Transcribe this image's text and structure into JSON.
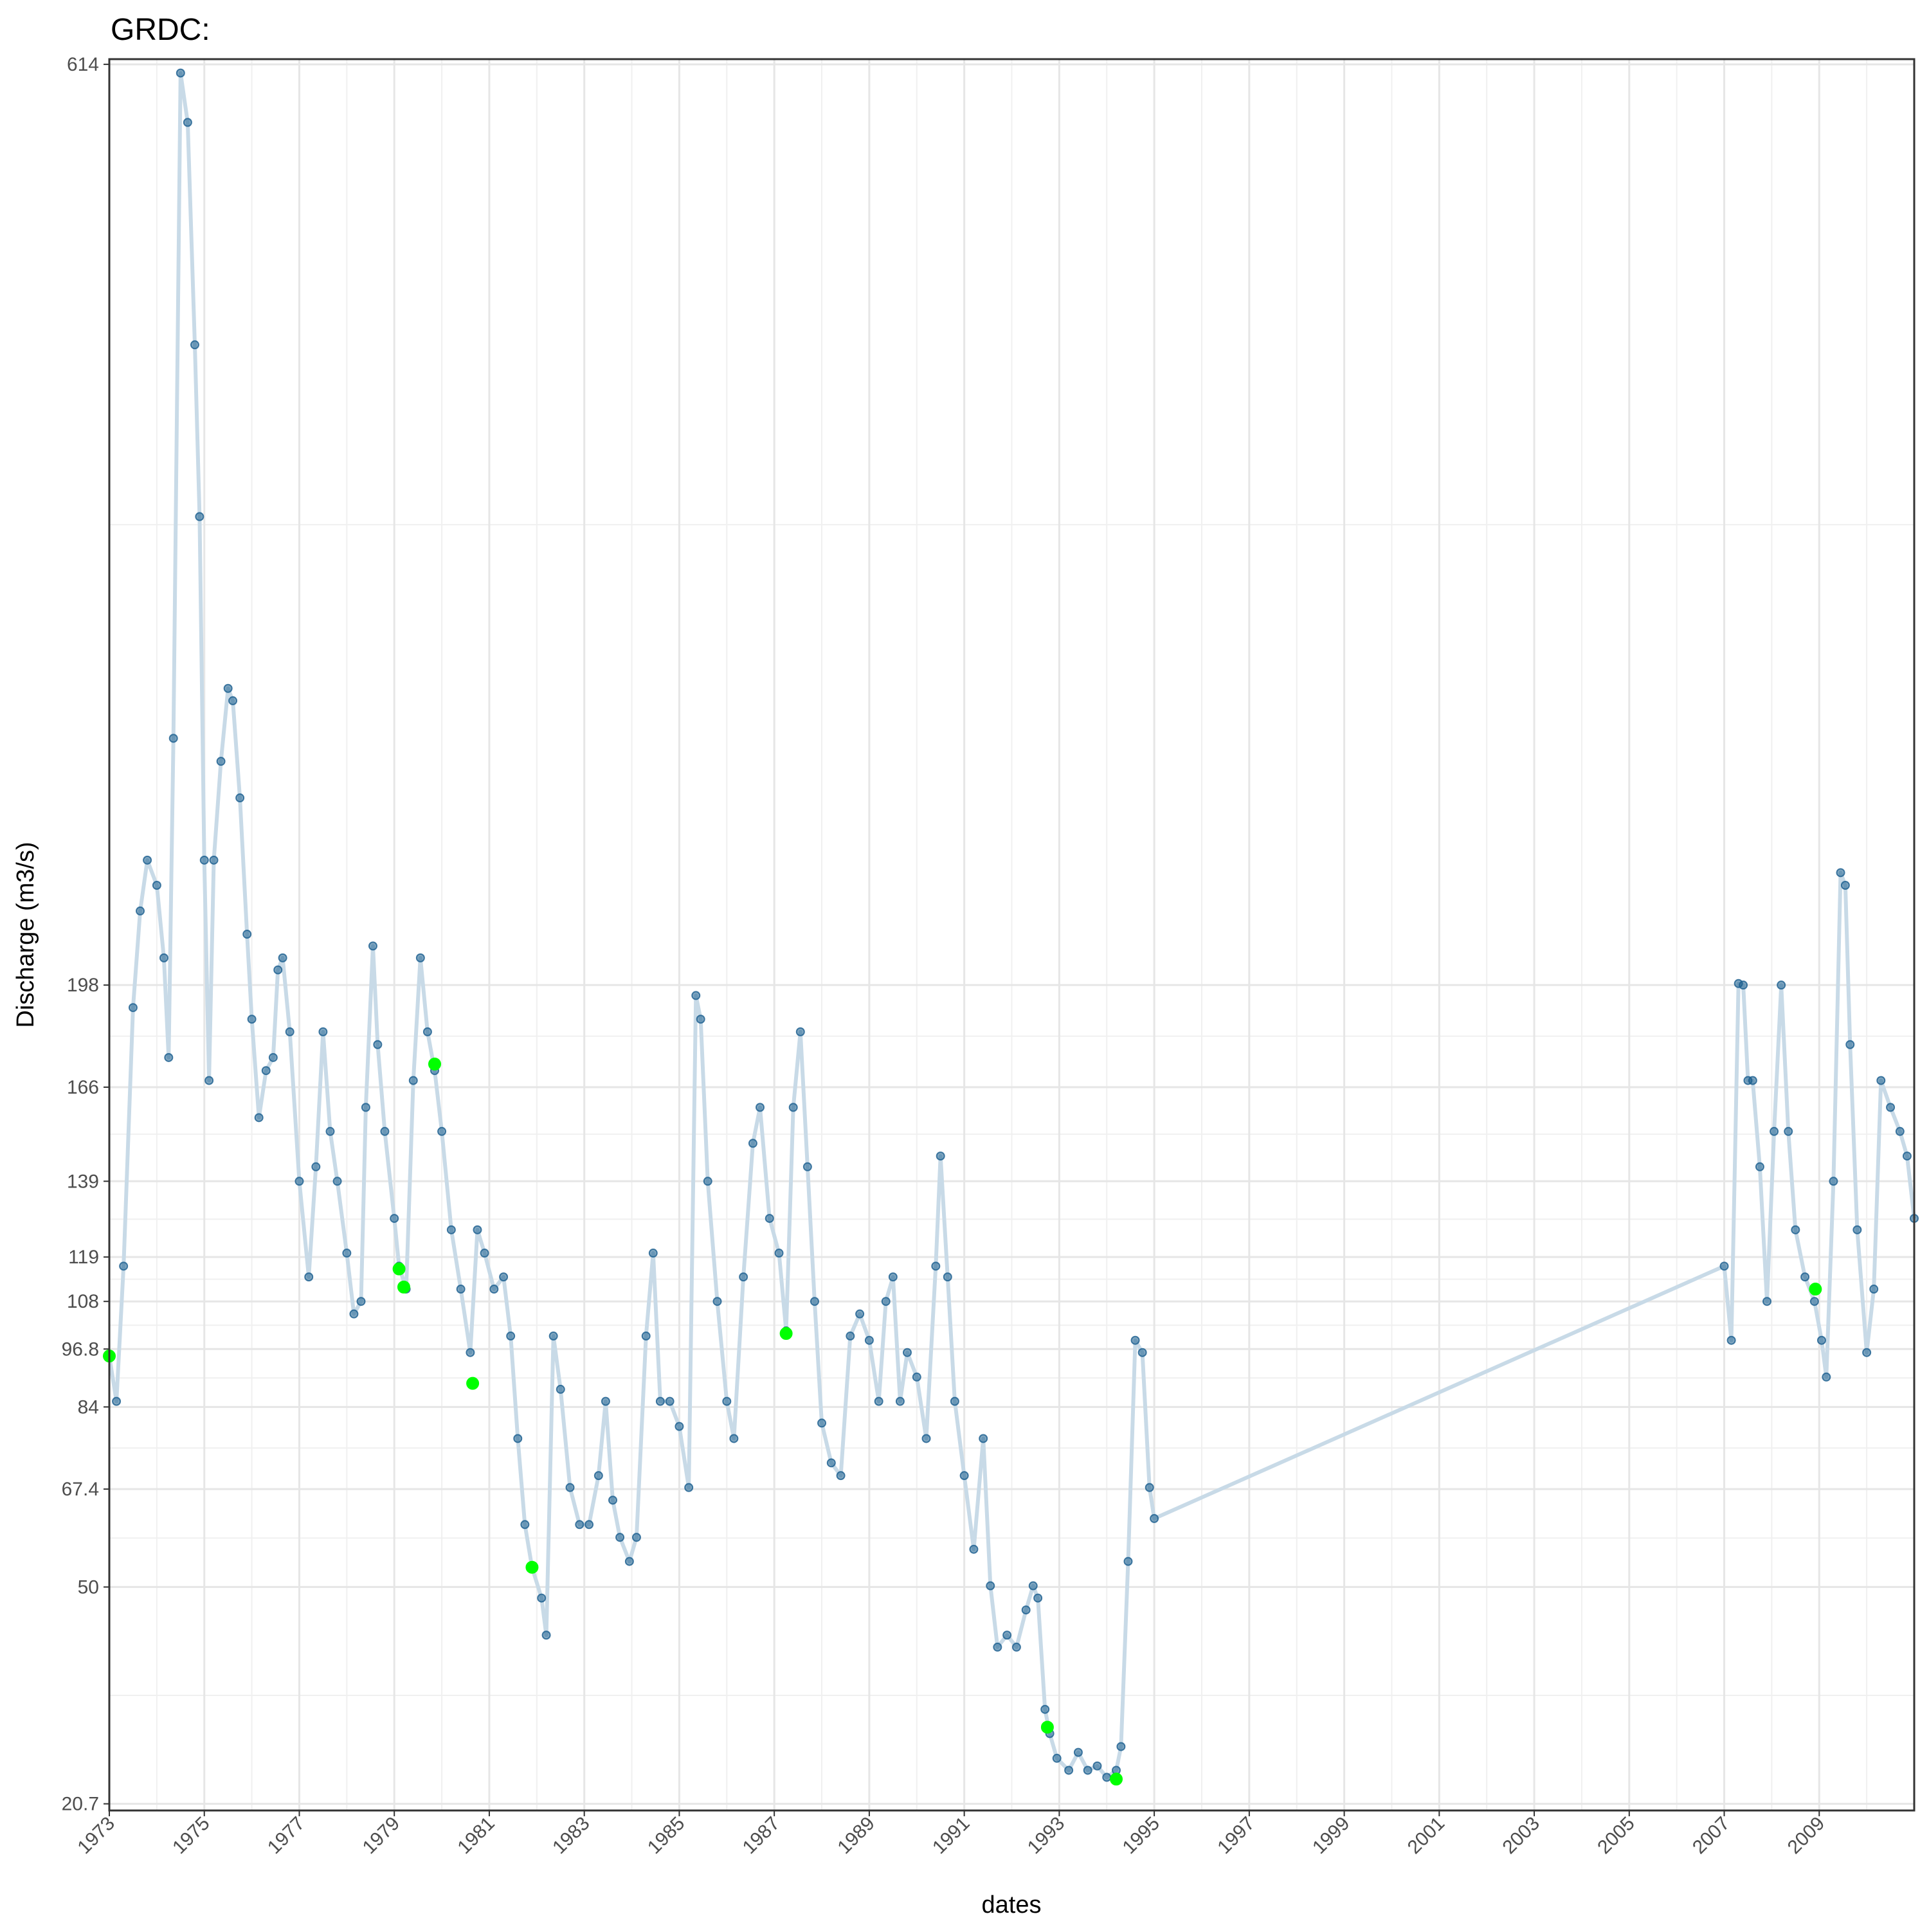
{
  "chart_data": {
    "type": "scatter",
    "title": "GRDC:",
    "x_label": "dates",
    "y_label": "Discharge (m3/s)",
    "y_scale": "sqrt",
    "grid": true,
    "line_color": "#c8dae7",
    "xlim": [
      1973,
      2011
    ],
    "xticks": [
      1973,
      1975,
      1977,
      1979,
      1981,
      1983,
      1985,
      1987,
      1989,
      1991,
      1993,
      1995,
      1997,
      1999,
      2001,
      2003,
      2005,
      2007,
      2009
    ],
    "ylim": [
      20,
      617
    ],
    "yticks": [
      20.7,
      50,
      67.4,
      84,
      96.8,
      108,
      119,
      139,
      166,
      198,
      614
    ],
    "series": [
      {
        "color": "#1a5e8e",
        "x": [
          1973.0,
          1973.15,
          1973.3,
          1973.5,
          1973.65,
          1973.8,
          1974.0,
          1974.15,
          1974.25,
          1974.35,
          1974.5,
          1974.65,
          1974.8,
          1974.9,
          1975.0,
          1975.1,
          1975.2,
          1975.35,
          1975.5,
          1975.6,
          1975.75,
          1975.9,
          1976.0,
          1976.15,
          1976.3,
          1976.45,
          1976.55,
          1976.65,
          1976.8,
          1977.0,
          1977.2,
          1977.35,
          1977.5,
          1977.65,
          1977.8,
          1978.0,
          1978.15,
          1978.3,
          1978.4,
          1978.55,
          1978.65,
          1978.8,
          1979.0,
          1979.1,
          1979.25,
          1979.4,
          1979.55,
          1979.7,
          1979.85,
          1980.0,
          1980.2,
          1980.4,
          1980.6,
          1980.75,
          1980.9,
          1981.1,
          1981.3,
          1981.45,
          1981.6,
          1981.75,
          1981.9,
          1982.1,
          1982.2,
          1982.35,
          1982.5,
          1982.7,
          1982.9,
          1983.1,
          1983.3,
          1983.45,
          1983.6,
          1983.75,
          1983.95,
          1984.1,
          1984.3,
          1984.45,
          1984.6,
          1984.8,
          1985.0,
          1985.2,
          1985.35,
          1985.45,
          1985.6,
          1985.8,
          1986.0,
          1986.15,
          1986.35,
          1986.55,
          1986.7,
          1986.9,
          1987.1,
          1987.25,
          1987.4,
          1987.55,
          1987.7,
          1987.85,
          1988.0,
          1988.2,
          1988.4,
          1988.6,
          1988.8,
          1989.0,
          1989.2,
          1989.35,
          1989.5,
          1989.65,
          1989.8,
          1990.0,
          1990.2,
          1990.4,
          1990.5,
          1990.65,
          1990.8,
          1991.0,
          1991.2,
          1991.4,
          1991.55,
          1991.7,
          1991.9,
          1992.1,
          1992.3,
          1992.45,
          1992.55,
          1992.7,
          1992.8,
          1992.95,
          1993.2,
          1993.4,
          1993.6,
          1993.8,
          1994.0,
          1994.2,
          1994.3,
          1994.45,
          1994.6,
          1994.75,
          1994.9,
          1995.0,
          2007.0,
          2007.15,
          2007.3,
          2007.4,
          2007.5,
          2007.6,
          2007.75,
          2007.9,
          2008.05,
          2008.2,
          2008.35,
          2008.5,
          2008.7,
          2008.9,
          2009.05,
          2009.15,
          2009.3,
          2009.45,
          2009.55,
          2009.65,
          2009.8,
          2010.0,
          2010.15,
          2010.3,
          2010.5,
          2010.7,
          2010.85,
          2011.0
        ],
        "values": [
          95.2,
          85.2,
          116.7,
          190.7,
          223,
          241,
          232,
          207,
          175,
          287,
          609,
          581,
          463,
          381,
          241,
          168,
          241,
          278,
          307,
          302,
          264,
          215,
          187,
          157,
          171,
          175,
          203,
          207,
          183,
          139,
          114,
          143,
          183,
          153,
          139,
          120,
          105,
          108,
          160,
          211,
          179,
          153,
          129,
          116.7,
          111,
          168,
          207,
          183,
          171,
          153,
          126,
          111,
          96,
          126,
          120,
          111,
          114,
          99.8,
          77.4,
          60.8,
          53.3,
          48.2,
          42.4,
          99.8,
          87.8,
          67.7,
          60.8,
          60.8,
          70,
          85.2,
          65.3,
          58.5,
          54.3,
          58.5,
          99.8,
          120,
          85.2,
          85.2,
          79.9,
          67.7,
          194.6,
          187,
          139,
          108,
          85.2,
          77.4,
          114,
          149.6,
          160,
          129,
          120,
          101,
          160,
          183,
          143,
          108,
          80.6,
          72.5,
          70,
          99.8,
          105,
          98.8,
          85.2,
          108,
          114,
          85.2,
          96,
          90.5,
          77.4,
          116.7,
          146,
          114,
          85.2,
          70,
          56.4,
          77.4,
          50.2,
          40.6,
          42.4,
          40.6,
          46.3,
          50.2,
          48.2,
          31.9,
          28.8,
          25.8,
          24.4,
          26.5,
          24.4,
          24.9,
          23.6,
          24.4,
          27.2,
          54.3,
          98.8,
          96,
          67.7,
          61.9,
          116.7,
          98.8,
          198.5,
          198,
          168,
          168,
          143,
          108,
          153,
          198,
          153,
          126,
          114,
          108,
          98.8,
          90.5,
          139,
          236.5,
          232,
          179,
          126,
          96,
          111,
          168,
          160,
          153,
          146,
          129
        ]
      },
      {
        "color": "#00ff00",
        "x": [
          1973.0,
          1979.1,
          1979.2,
          1979.85,
          1980.65,
          1981.9,
          1987.25,
          1992.75,
          1994.2,
          2008.92
        ],
        "values": [
          95.2,
          116,
          111.5,
          173,
          89.1,
          53.3,
          100.4,
          29.6,
          23.4,
          111
        ]
      }
    ]
  }
}
